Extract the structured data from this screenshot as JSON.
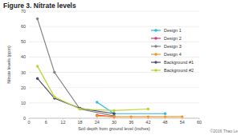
{
  "chart_data": {
    "type": "line",
    "title": "Figure 3. Nitrate levels",
    "x_label": "Soil depth from ground level (inches)",
    "y_label": "Nitrate levels (ppm)",
    "credit": "©2016 Thao Le",
    "xlim": [
      0,
      60
    ],
    "xticks": [
      0,
      6,
      12,
      18,
      24,
      30,
      36,
      42,
      48,
      54,
      60
    ],
    "ylim": [
      0,
      70
    ],
    "yticks": [
      0,
      10,
      20,
      30,
      40,
      50,
      60,
      70
    ],
    "grid": true,
    "legend": "right",
    "marker": "circle",
    "series": [
      {
        "name": "Design 1",
        "color": "#29b6e8",
        "x": [
          24,
          30,
          48
        ],
        "values": [
          10.5,
          3,
          3
        ]
      },
      {
        "name": "Design 2",
        "color": "#e8336f",
        "x": [
          24,
          30
        ],
        "values": [
          2,
          1
        ]
      },
      {
        "name": "Design 3",
        "color": "#808080",
        "x": [
          3,
          9,
          18,
          30
        ],
        "values": [
          65,
          30,
          6,
          1.5
        ]
      },
      {
        "name": "Design 4",
        "color": "#f7941d",
        "x": [
          24,
          30,
          36,
          42,
          48,
          54
        ],
        "values": [
          1.5,
          1,
          1,
          1,
          1,
          1
        ]
      },
      {
        "name": "Background #1",
        "color": "#4a4a6a",
        "x": [
          3,
          9,
          18,
          30
        ],
        "values": [
          26,
          13,
          6.5,
          3
        ]
      },
      {
        "name": "Background #2",
        "color": "#b8d432",
        "x": [
          3,
          9,
          18,
          30,
          42
        ],
        "values": [
          34,
          14,
          6,
          5,
          6
        ]
      }
    ]
  }
}
